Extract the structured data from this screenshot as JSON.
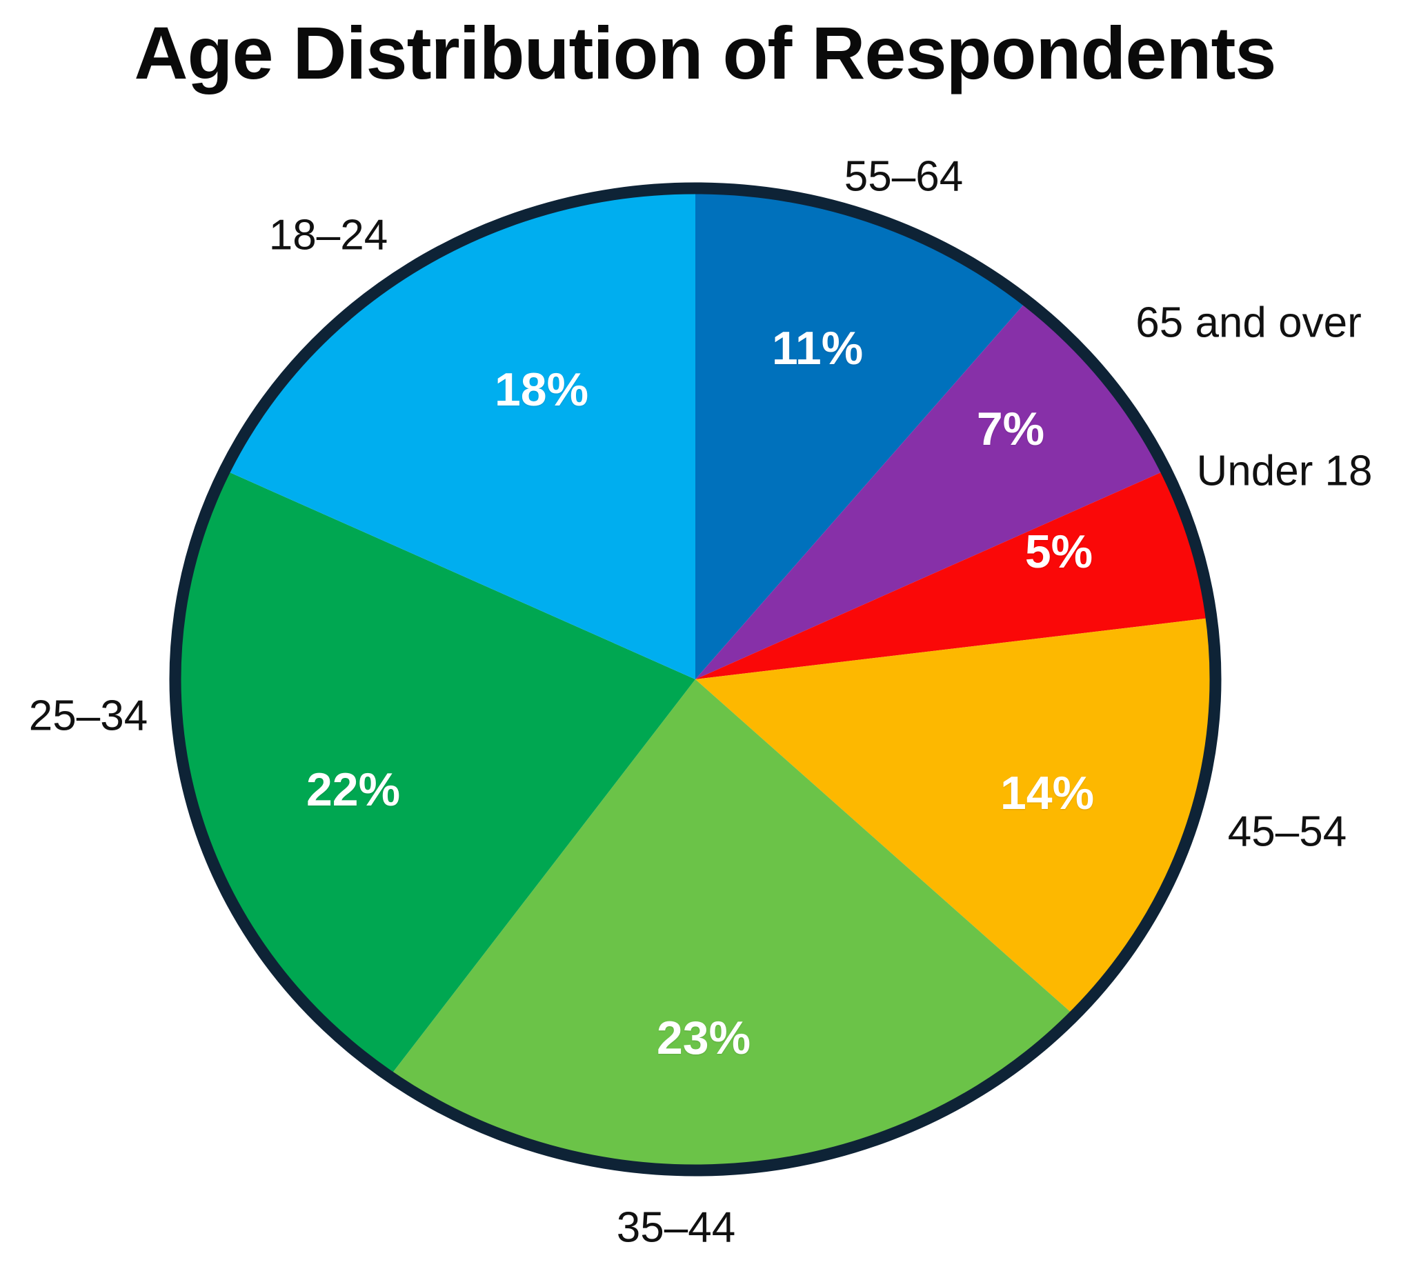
{
  "title": "Age Distribution of Respondents",
  "chart_data": {
    "type": "pie",
    "title": "Age Distribution of Respondents",
    "start_angle_deg": 0,
    "direction": "clockwise",
    "outline_color": "#0E2336",
    "label_text_color": "#ffffff",
    "category_text_color": "#111111",
    "legend_position": "outside-labels",
    "slices": [
      {
        "label": "55–64",
        "value": 11,
        "value_label": "11%",
        "color": "#0071BC"
      },
      {
        "label": "65 and over",
        "value": 7,
        "value_label": "7%",
        "color": "#8730A8"
      },
      {
        "label": "Under 18",
        "value": 5,
        "value_label": "5%",
        "color": "#FA0808"
      },
      {
        "label": "45–54",
        "value": 14,
        "value_label": "14%",
        "color": "#FDB800"
      },
      {
        "label": "35–44",
        "value": 23,
        "value_label": "23%",
        "color": "#6BC348"
      },
      {
        "label": "25–34",
        "value": 22,
        "value_label": "22%",
        "color": "#00A751"
      },
      {
        "label": "18–24",
        "value": 18,
        "value_label": "18%",
        "color": "#00AEEF"
      }
    ]
  }
}
